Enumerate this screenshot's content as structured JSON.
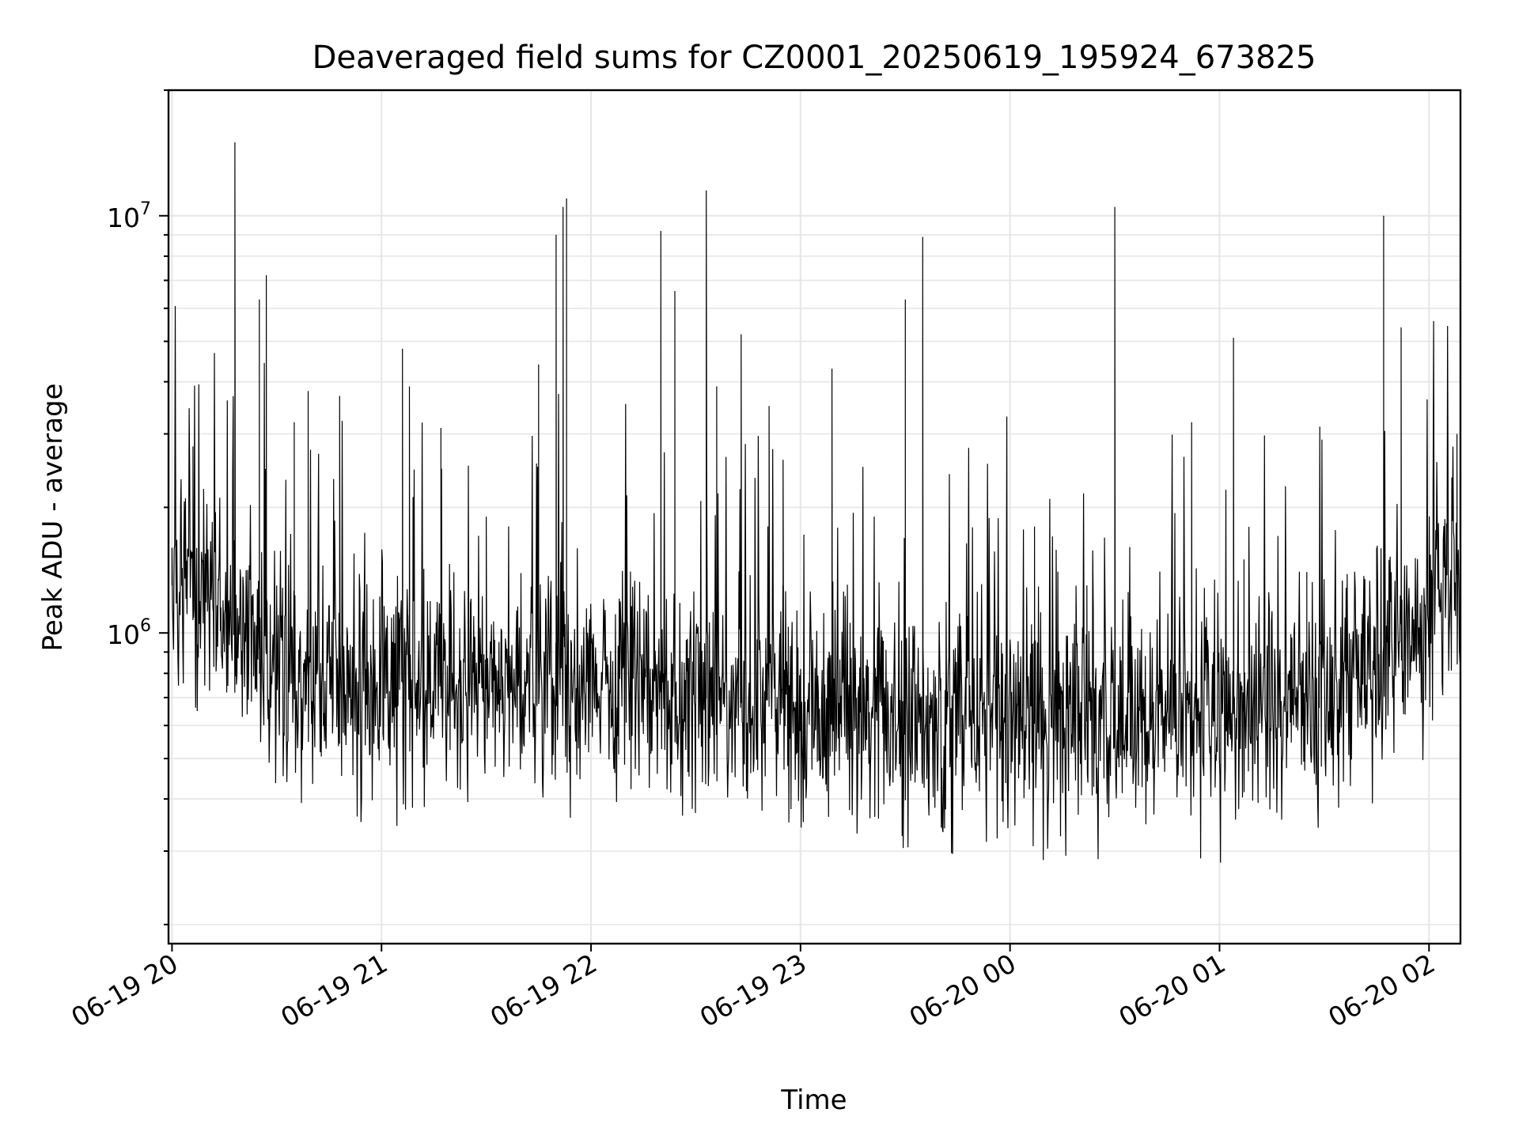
{
  "chart_data": {
    "type": "line",
    "title": "Deaveraged field sums for CZ0001_20250619_195924_673825",
    "xlabel": "Time",
    "ylabel": "Peak ADU - average",
    "yscale": "log",
    "xlim": [
      "2025-06-19 19:59",
      "2025-06-20 02:09"
    ],
    "ylim": [
      180000,
      20000000
    ],
    "grid": {
      "major": true,
      "minor_y": true
    },
    "legend": "none",
    "line_color": "#000000",
    "x_ticks": [
      "06-19 20",
      "06-19 21",
      "06-19 22",
      "06-19 23",
      "06-20 00",
      "06-20 01",
      "06-20 02"
    ],
    "y_ticks": [
      {
        "base": "10",
        "exp": "6",
        "value": 1000000
      },
      {
        "base": "10",
        "exp": "7",
        "value": 10000000
      }
    ],
    "series": [
      {
        "x": [
          "2025-06-19 20:00",
          "2025-06-19 20:06",
          "2025-06-19 20:15",
          "2025-06-19 20:18",
          "2025-06-19 20:25",
          "2025-06-19 20:27",
          "2025-06-19 20:35",
          "2025-06-19 20:39",
          "2025-06-19 20:48",
          "2025-06-19 21:06",
          "2025-06-19 21:08",
          "2025-06-19 21:17",
          "2025-06-19 21:30",
          "2025-06-19 21:45",
          "2025-06-19 21:50",
          "2025-06-19 21:52",
          "2025-06-19 21:53",
          "2025-06-19 22:20",
          "2025-06-19 22:24",
          "2025-06-19 22:33",
          "2025-06-19 22:36",
          "2025-06-19 22:43",
          "2025-06-19 22:51",
          "2025-06-19 22:55",
          "2025-06-19 23:09",
          "2025-06-19 23:30",
          "2025-06-19 23:35",
          "2025-06-20 00:07",
          "2025-06-20 00:22",
          "2025-06-20 00:30",
          "2025-06-20 00:31",
          "2025-06-20 00:52",
          "2025-06-20 01:04",
          "2025-06-20 01:07",
          "2025-06-20 01:25",
          "2025-06-20 01:32",
          "2025-06-20 01:45",
          "2025-06-20 01:47",
          "2025-06-20 01:52",
          "2025-06-20 02:00",
          "2025-06-20 02:08"
        ],
        "y": [
          1300000,
          2800000,
          900000,
          15000000,
          6300000,
          7200000,
          3200000,
          3800000,
          3700000,
          4800000,
          3900000,
          3100000,
          1900000,
          4400000,
          9000000,
          10500000,
          11000000,
          9200000,
          6600000,
          11500000,
          3900000,
          5200000,
          3500000,
          2600000,
          4300000,
          6300000,
          8900000,
          1800000,
          1300000,
          10500000,
          750000,
          3200000,
          5100000,
          1500000,
          1400000,
          780000,
          1600000,
          10000000,
          5400000,
          1500000,
          3000000
        ]
      }
    ]
  }
}
